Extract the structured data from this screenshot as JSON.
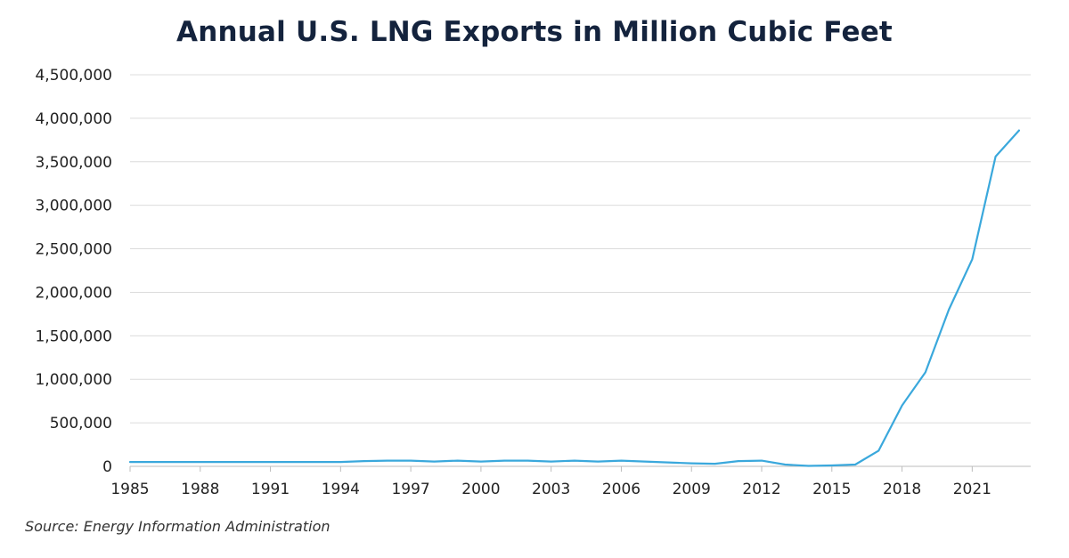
{
  "chart_data": {
    "type": "line",
    "title": "Annual U.S. LNG Exports in Million Cubic Feet",
    "source": "Source: Energy Information Administration",
    "xlabel": "",
    "ylabel": "",
    "xlim": [
      1985,
      2023.5
    ],
    "ylim": [
      0,
      4500000
    ],
    "grid": true,
    "legend": "none",
    "line_color": "#3aa8dc",
    "x_ticks": [
      1985,
      1988,
      1991,
      1994,
      1997,
      2000,
      2003,
      2006,
      2009,
      2012,
      2015,
      2018,
      2021
    ],
    "y_ticks": [
      0,
      500000,
      1000000,
      1500000,
      2000000,
      2500000,
      3000000,
      3500000,
      4000000,
      4500000
    ],
    "y_tick_labels": [
      "0",
      "500,000",
      "1,000,000",
      "1,500,000",
      "2,000,000",
      "2,500,000",
      "3,000,000",
      "3,500,000",
      "4,000,000",
      "4,500,000"
    ],
    "series": [
      {
        "x": [
          1985,
          1986,
          1987,
          1988,
          1989,
          1990,
          1991,
          1992,
          1993,
          1994,
          1995,
          1996,
          1997,
          1998,
          1999,
          2000,
          2001,
          2002,
          2003,
          2004,
          2005,
          2006,
          2007,
          2008,
          2009,
          2010,
          2011,
          2012,
          2013,
          2014,
          2015,
          2016,
          2017,
          2018,
          2019,
          2020,
          2021,
          2022,
          2023
        ],
        "values": [
          50000,
          50000,
          50000,
          50000,
          50000,
          50000,
          50000,
          50000,
          50000,
          50000,
          60000,
          65000,
          65000,
          55000,
          65000,
          55000,
          65000,
          65000,
          55000,
          65000,
          55000,
          65000,
          55000,
          45000,
          35000,
          30000,
          60000,
          65000,
          20000,
          5000,
          10000,
          20000,
          180000,
          700000,
          1080000,
          1800000,
          2380000,
          3560000,
          3860000
        ]
      }
    ]
  }
}
